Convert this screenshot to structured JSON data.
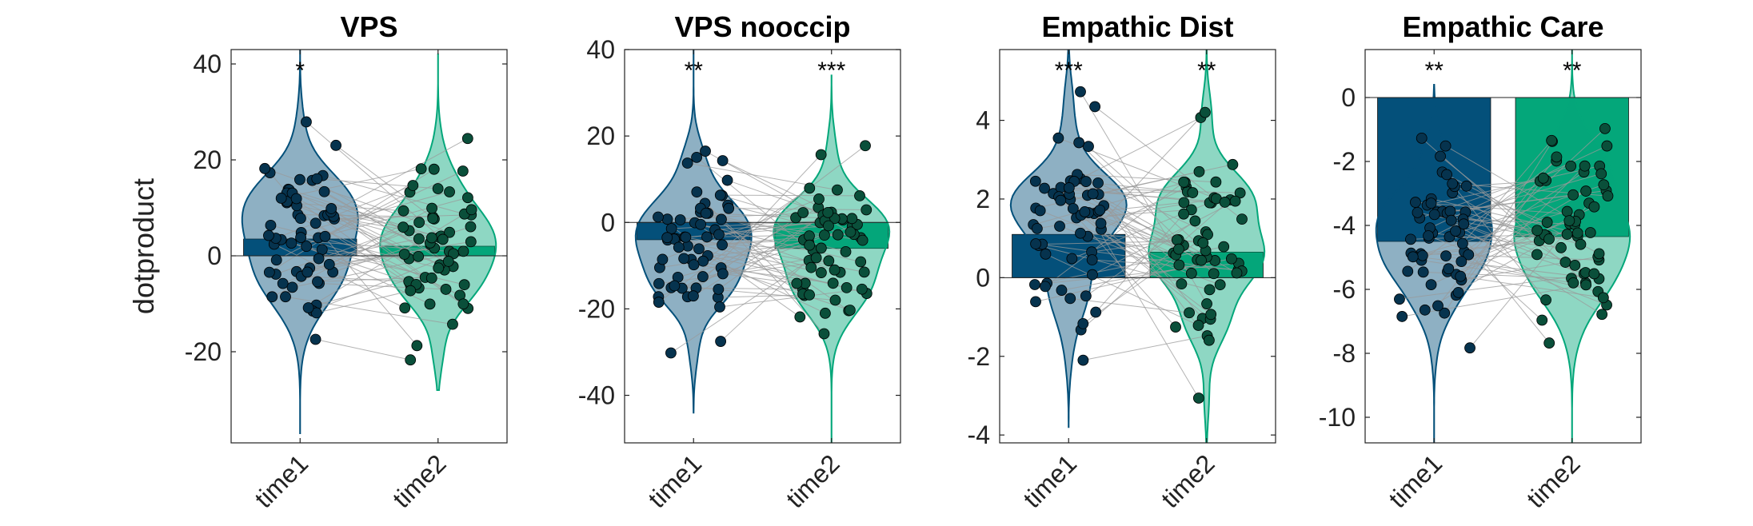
{
  "figure": {
    "ylabel": "dotproduct",
    "groups": [
      "time1",
      "time2"
    ],
    "colors": {
      "time1": "#04507a",
      "time2": "#04a77a"
    }
  },
  "chart_data": [
    {
      "type": "bar",
      "title": "VPS",
      "ylabel": "dotproduct",
      "categories": [
        "time1",
        "time2"
      ],
      "values": [
        3.5,
        2.0
      ],
      "ylim": [
        -39,
        43
      ],
      "yticks": [
        -20,
        0,
        20,
        40
      ],
      "significance": [
        "*",
        ""
      ],
      "overlay": "violin + paired subject lines",
      "violin_range": [
        [
          -37,
          43
        ],
        [
          -28,
          42
        ]
      ],
      "n_points": 60
    },
    {
      "type": "bar",
      "title": "VPS nooccip",
      "categories": [
        "time1",
        "time2"
      ],
      "values": [
        -4.0,
        -6.0
      ],
      "ylim": [
        -51,
        40
      ],
      "yticks": [
        -40,
        -20,
        0,
        20,
        40
      ],
      "significance": [
        "**",
        "***"
      ],
      "overlay": "violin + paired subject lines",
      "violin_range": [
        [
          -44,
          40
        ],
        [
          -51,
          34
        ]
      ],
      "n_points": 60
    },
    {
      "type": "bar",
      "title": "Empathic Dist",
      "categories": [
        "time1",
        "time2"
      ],
      "values": [
        1.1,
        0.65
      ],
      "ylim": [
        -4.2,
        5.8
      ],
      "yticks": [
        -4,
        -2,
        0,
        2,
        4
      ],
      "significance": [
        "***",
        "**"
      ],
      "overlay": "violin + paired subject lines",
      "violin_range": [
        [
          -3.8,
          5.8
        ],
        [
          -4.2,
          5.8
        ]
      ],
      "n_points": 60
    },
    {
      "type": "bar",
      "title": "Empathic Care",
      "categories": [
        "time1",
        "time2"
      ],
      "values": [
        -4.5,
        -4.35
      ],
      "ylim": [
        -10.8,
        1.5
      ],
      "yticks": [
        -10,
        -8,
        -6,
        -4,
        -2,
        0
      ],
      "significance": [
        "**",
        "**"
      ],
      "overlay": "violin + paired subject lines",
      "violin_range": [
        [
          -10.8,
          0.4
        ],
        [
          -10.8,
          1.5
        ]
      ],
      "n_points": 60
    }
  ]
}
